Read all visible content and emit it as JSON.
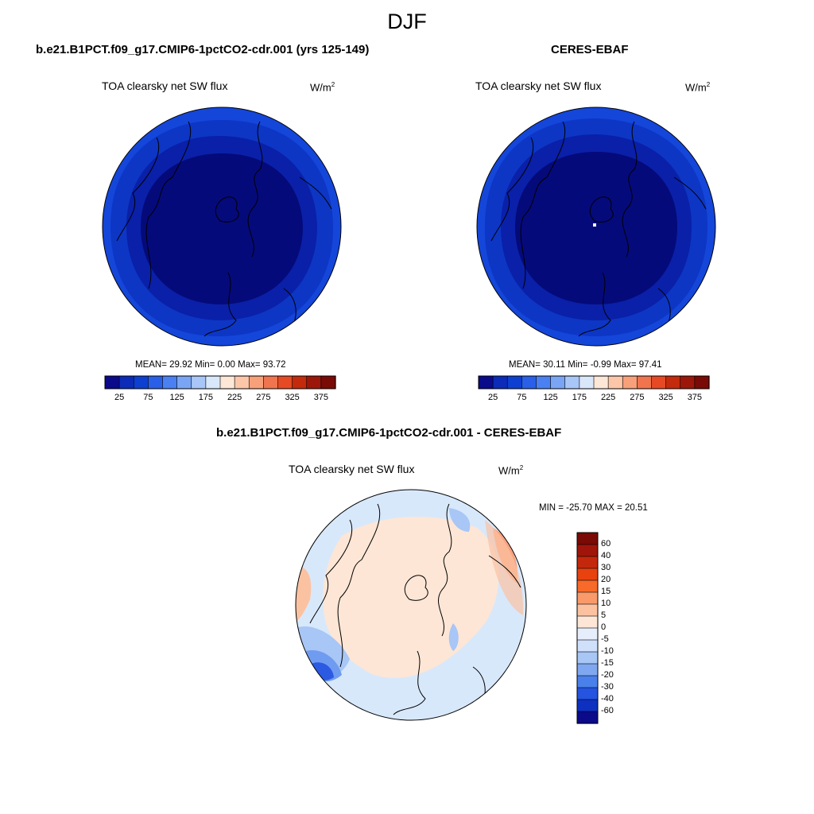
{
  "season": "DJF",
  "units": {
    "base": "W/m",
    "exp": "2"
  },
  "panels": [
    {
      "title": "b.e21.B1PCT.f09_g17.CMIP6-1pctCO2-cdr.001 (yrs 125-149)",
      "variable": "TOA clearsky net SW flux",
      "stats": "MEAN=  29.92  Min=   0.00  Max=  93.72"
    },
    {
      "title": "CERES-EBAF",
      "variable": "TOA clearsky net SW flux",
      "stats": "MEAN=  30.11  Min=  -0.99  Max=  97.41"
    },
    {
      "title": "b.e21.B1PCT.f09_g17.CMIP6-1pctCO2-cdr.001 - CERES-EBAF",
      "variable": "TOA clearsky net SW flux",
      "stats": "MIN = -25.70 MAX =  20.51"
    }
  ],
  "chart_data": [
    {
      "type": "polar_contour_map",
      "projection": "north polar stereographic",
      "title": "b.e21.B1PCT.f09_g17.CMIP6-1pctCO2-cdr.001 (yrs 125-149)",
      "variable": "TOA clearsky net SW flux",
      "units": "W/m2",
      "mean": 29.92,
      "min": 0.0,
      "max": 93.72,
      "contour_levels": [
        25,
        50,
        75,
        100,
        125,
        150,
        175,
        200,
        225,
        250,
        275,
        300,
        325,
        350,
        375
      ],
      "colorbar_tick_labels": [
        "25",
        "75",
        "125",
        "175",
        "225",
        "275",
        "325",
        "375"
      ],
      "colorbar_colors": [
        "#0a0a8a",
        "#0b2bb8",
        "#0d3fd0",
        "#2a5fe8",
        "#4a80f2",
        "#7aa5f5",
        "#a9c6f8",
        "#d8e7fa",
        "#fde7d6",
        "#fbc7a8",
        "#f7a07a",
        "#f0744e",
        "#e64a25",
        "#c42a0c",
        "#9c170a",
        "#7a0a05"
      ],
      "field_colors_center_to_edge": [
        "#050a7a",
        "#0a20a8",
        "#0d36c4",
        "#1446da"
      ]
    },
    {
      "type": "polar_contour_map",
      "projection": "north polar stereographic",
      "title": "CERES-EBAF",
      "variable": "TOA clearsky net SW flux",
      "units": "W/m2",
      "mean": 30.11,
      "min": -0.99,
      "max": 97.41,
      "contour_levels": [
        25,
        50,
        75,
        100,
        125,
        150,
        175,
        200,
        225,
        250,
        275,
        300,
        325,
        350,
        375
      ],
      "colorbar_tick_labels": [
        "25",
        "75",
        "125",
        "175",
        "225",
        "275",
        "325",
        "375"
      ],
      "colorbar_colors": [
        "#0a0a8a",
        "#0b2bb8",
        "#0d3fd0",
        "#2a5fe8",
        "#4a80f2",
        "#7aa5f5",
        "#a9c6f8",
        "#d8e7fa",
        "#fde7d6",
        "#fbc7a8",
        "#f7a07a",
        "#f0744e",
        "#e64a25",
        "#c42a0c",
        "#9c170a",
        "#7a0a05"
      ],
      "field_colors_center_to_edge": [
        "#050a7a",
        "#0a20a8",
        "#0d36c4",
        "#1446da"
      ]
    },
    {
      "type": "polar_contour_map",
      "projection": "north polar stereographic",
      "title": "b.e21.B1PCT.f09_g17.CMIP6-1pctCO2-cdr.001 - CERES-EBAF",
      "variable": "TOA clearsky net SW flux",
      "units": "W/m2",
      "min": -25.7,
      "max": 20.51,
      "contour_levels": [
        -60,
        -40,
        -30,
        -20,
        -15,
        -10,
        -5,
        0,
        5,
        10,
        15,
        20,
        30,
        40,
        60
      ],
      "colorbar_tick_labels": [
        "60",
        "40",
        "30",
        "20",
        "15",
        "10",
        "5",
        "0",
        "-5",
        "-10",
        "-15",
        "-20",
        "-30",
        "-40",
        "-60"
      ],
      "colorbar_colors": [
        "#7a0a05",
        "#a0150a",
        "#c4280c",
        "#e8420f",
        "#f86a2a",
        "#fa9a6a",
        "#fcc2a0",
        "#fde6d6",
        "#e6eefc",
        "#cfe0fb",
        "#a8c6f6",
        "#7fa8f0",
        "#4a80ea",
        "#2454e0",
        "#0e30c0",
        "#0a0a8a"
      ],
      "field_colors": {
        "near_zero_positive": "#fde6d6",
        "near_zero_negative": "#d8e8fb",
        "positive_5_10": "#fbc2a2",
        "positive_10_15": "#f7a27e",
        "negative_5_10": "#a8c6f6",
        "negative_10_20": "#6f9cf0",
        "negative_20_30": "#2c5ae2"
      }
    }
  ]
}
